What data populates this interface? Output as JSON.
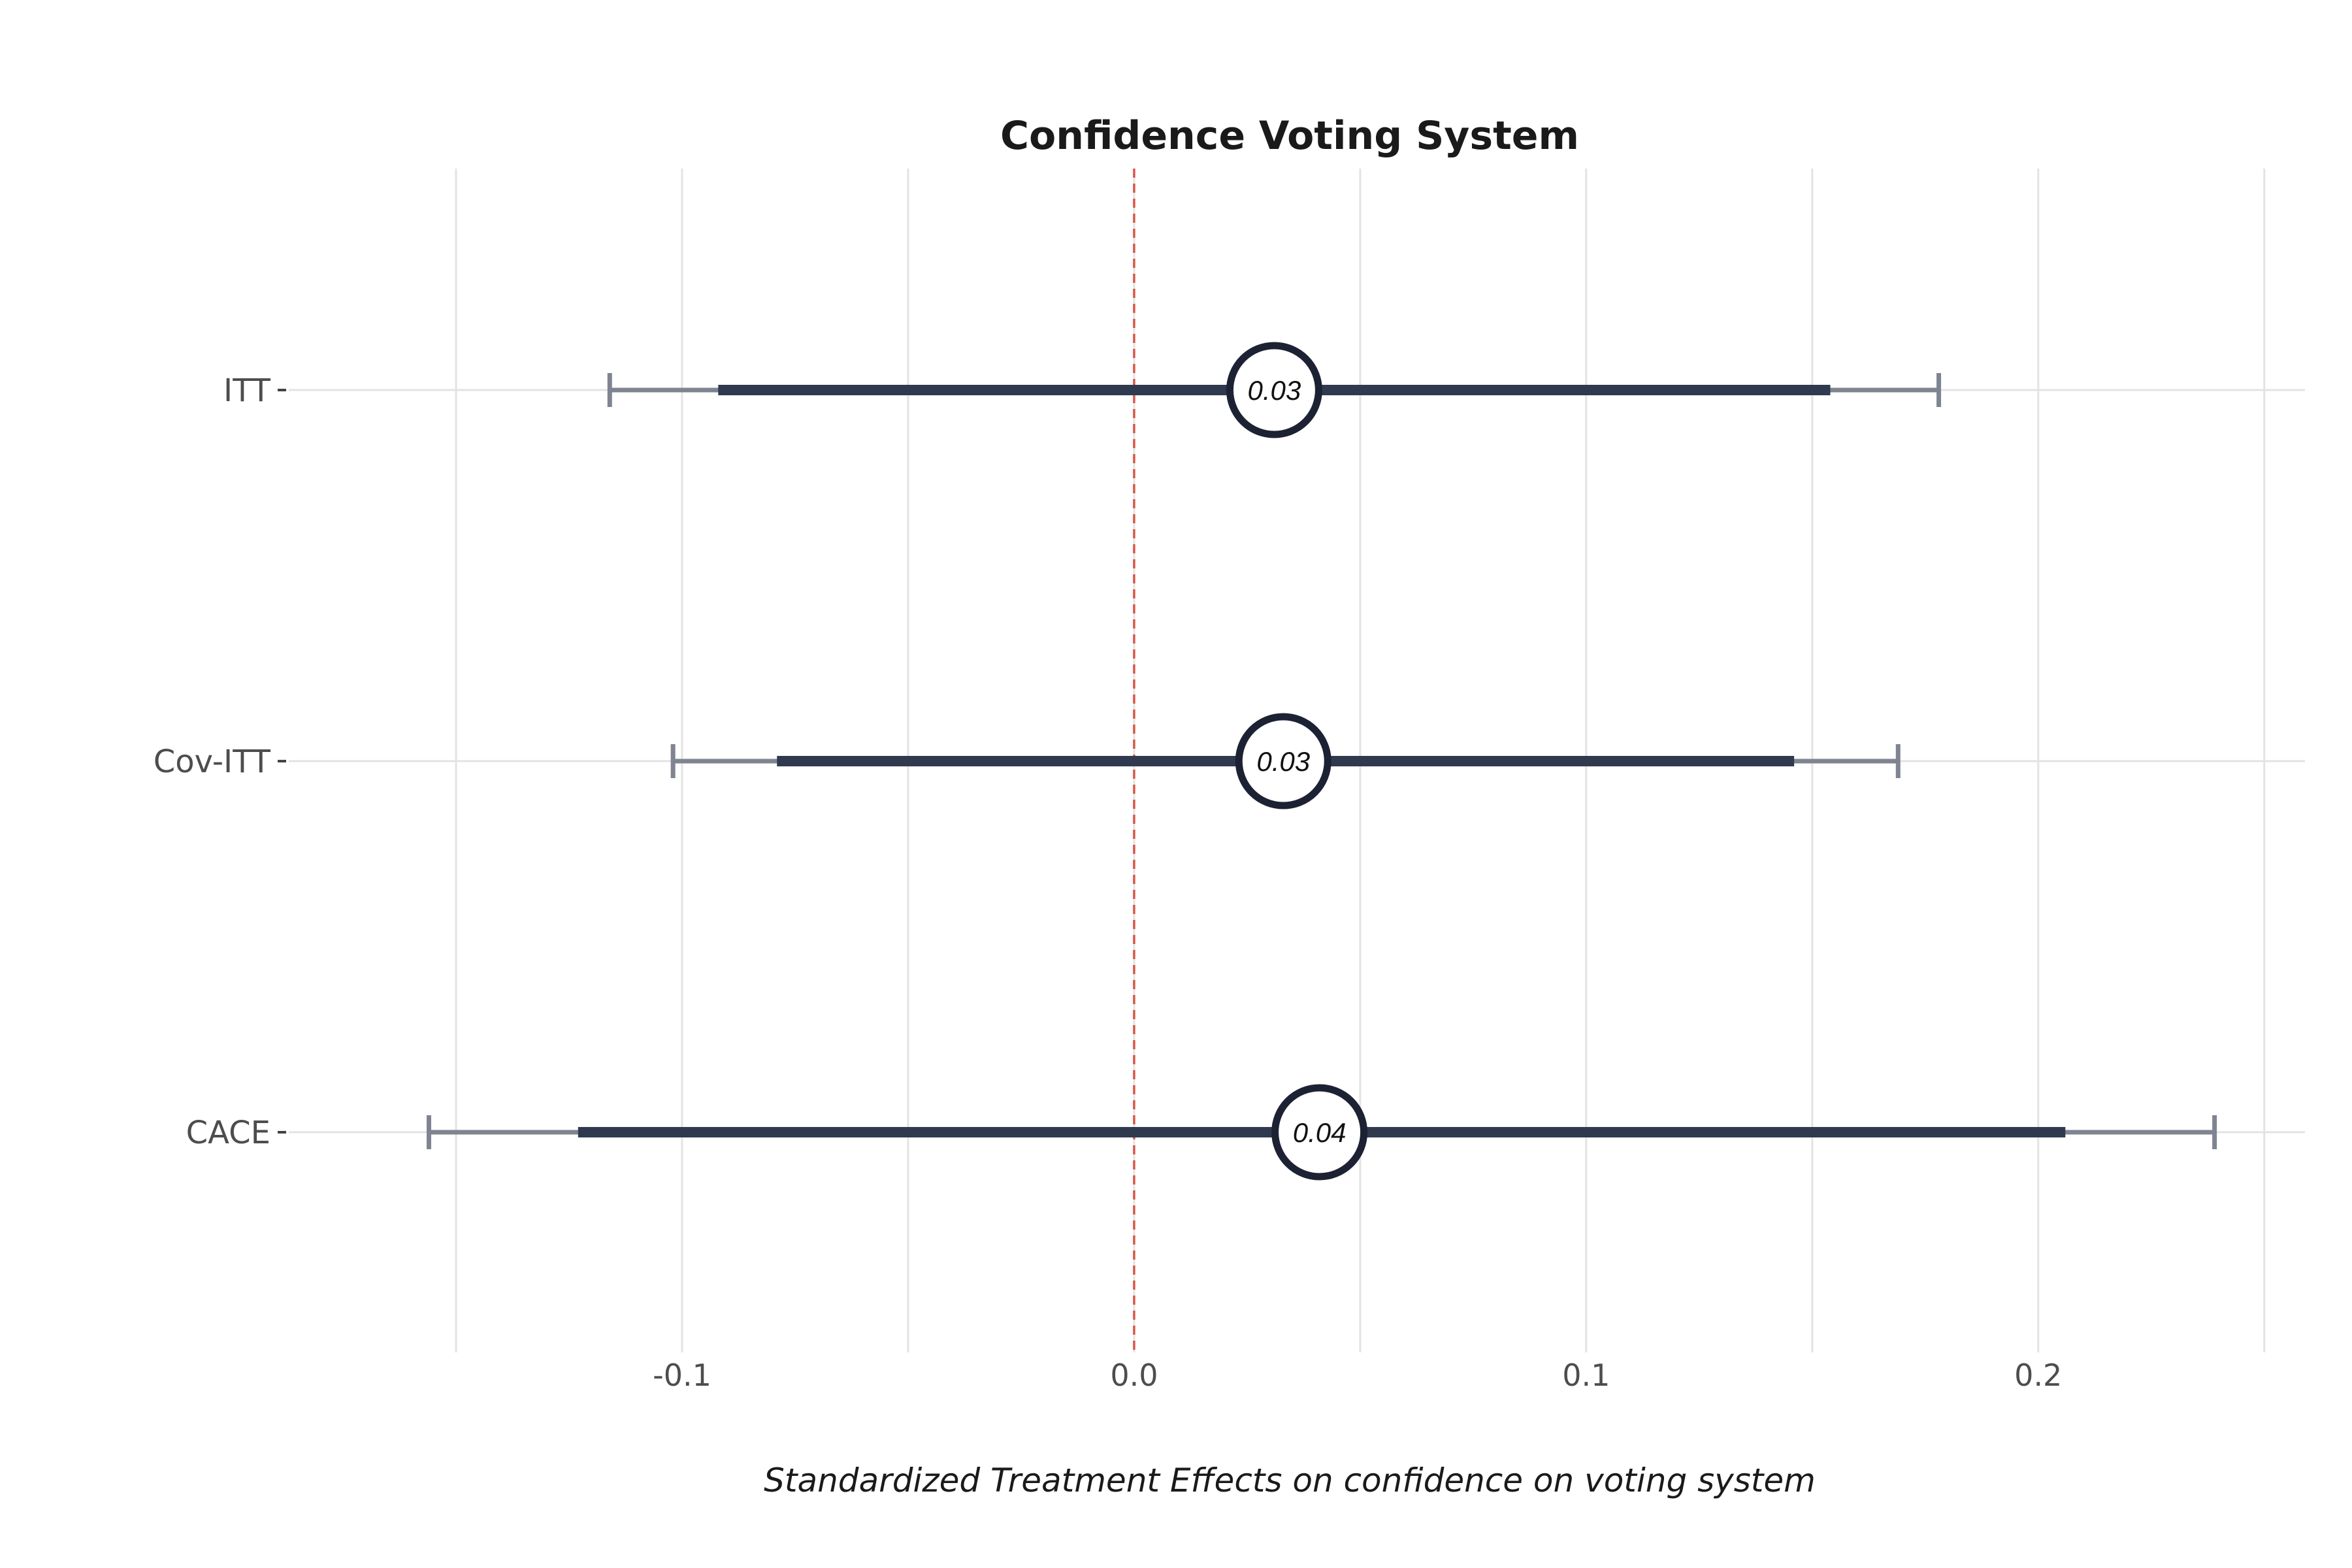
{
  "chart_data": {
    "type": "forest",
    "title": "Confidence Voting System",
    "xlabel": "Standardized Treatment Effects on confidence on voting system",
    "ylabel": "",
    "xlim": [
      -0.187,
      0.259
    ],
    "x_ticks": [
      -0.1,
      0.0,
      0.1,
      0.2
    ],
    "x_tick_labels": [
      "-0.1",
      "0.0",
      "0.1",
      "0.2"
    ],
    "minor_gridlines": [
      -0.15,
      -0.05,
      0.05,
      0.15,
      0.25
    ],
    "reference_line": 0,
    "categories": [
      "ITT",
      "Cov-ITT",
      "CACE"
    ],
    "estimates": [
      0.031,
      0.033,
      0.041
    ],
    "estimate_labels": [
      "0.03",
      "0.03",
      "0.04"
    ],
    "ci_inner": [
      [
        -0.092,
        0.154
      ],
      [
        -0.079,
        0.146
      ],
      [
        -0.123,
        0.206
      ]
    ],
    "ci_outer": [
      [
        -0.116,
        0.178
      ],
      [
        -0.102,
        0.169
      ],
      [
        -0.156,
        0.239
      ]
    ],
    "grid": true,
    "colors": {
      "inner_bar": "#2f3a4f",
      "outer_bar": "#7f8491",
      "point_border": "#1c2233",
      "point_fill": "#ffffff",
      "reference_line": "#d9574a",
      "grid": "#e3e3e3"
    }
  }
}
